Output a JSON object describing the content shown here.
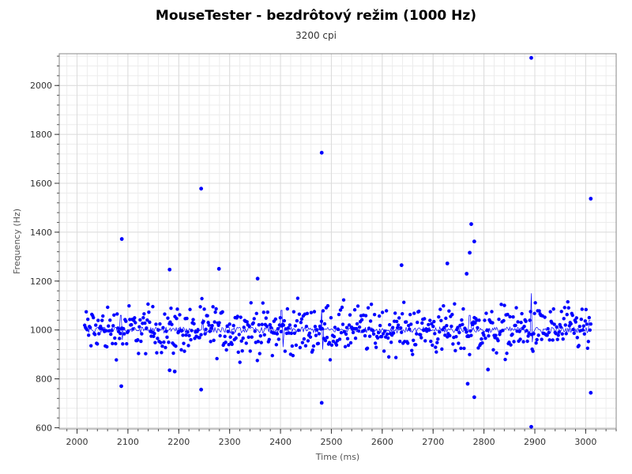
{
  "chart_data": {
    "type": "scatter",
    "title": "MouseTester - bezdrôtový režim (1000 Hz)",
    "subtitle": "3200 cpi",
    "xlabel": "Time (ms)",
    "ylabel": "Frequency (Hz)",
    "xlim": [
      1965,
      3060
    ],
    "ylim": [
      595,
      2130
    ],
    "x_ticks": [
      2000,
      2100,
      2200,
      2300,
      2400,
      2500,
      2600,
      2700,
      2800,
      2900,
      3000
    ],
    "y_ticks": [
      600,
      800,
      1000,
      1200,
      1400,
      1600,
      1800,
      2000
    ],
    "grid": true,
    "point_color": "#0000ff",
    "line_color": "#0000ff",
    "outliers": [
      {
        "x": 2088,
        "y": 1372
      },
      {
        "x": 2087,
        "y": 770
      },
      {
        "x": 2182,
        "y": 1247
      },
      {
        "x": 2182,
        "y": 835
      },
      {
        "x": 2192,
        "y": 830
      },
      {
        "x": 2244,
        "y": 1578
      },
      {
        "x": 2244,
        "y": 756
      },
      {
        "x": 2279,
        "y": 1250
      },
      {
        "x": 2355,
        "y": 1210
      },
      {
        "x": 2481,
        "y": 1725
      },
      {
        "x": 2481,
        "y": 702
      },
      {
        "x": 2638,
        "y": 1265
      },
      {
        "x": 2728,
        "y": 1272
      },
      {
        "x": 2766,
        "y": 1230
      },
      {
        "x": 2772,
        "y": 1316
      },
      {
        "x": 2775,
        "y": 1433
      },
      {
        "x": 2781,
        "y": 1362
      },
      {
        "x": 2781,
        "y": 725
      },
      {
        "x": 2768,
        "y": 780
      },
      {
        "x": 2808,
        "y": 838
      },
      {
        "x": 2893,
        "y": 2113
      },
      {
        "x": 2893,
        "y": 604
      },
      {
        "x": 3010,
        "y": 1537
      },
      {
        "x": 3010,
        "y": 743
      }
    ],
    "points_x_range": [
      2015,
      3010
    ],
    "points_count": 640,
    "band_center": 1000,
    "band_spread": 120,
    "line_spikes": [
      {
        "x": 2086,
        "y": 1060
      },
      {
        "x": 2088,
        "y": 960
      },
      {
        "x": 2247,
        "y": 1045
      },
      {
        "x": 2402,
        "y": 1080
      },
      {
        "x": 2404,
        "y": 930
      },
      {
        "x": 2481,
        "y": 1080
      },
      {
        "x": 2483,
        "y": 920
      },
      {
        "x": 2772,
        "y": 1060
      },
      {
        "x": 2893,
        "y": 1150
      },
      {
        "x": 2895,
        "y": 950
      },
      {
        "x": 3008,
        "y": 1040
      }
    ]
  }
}
